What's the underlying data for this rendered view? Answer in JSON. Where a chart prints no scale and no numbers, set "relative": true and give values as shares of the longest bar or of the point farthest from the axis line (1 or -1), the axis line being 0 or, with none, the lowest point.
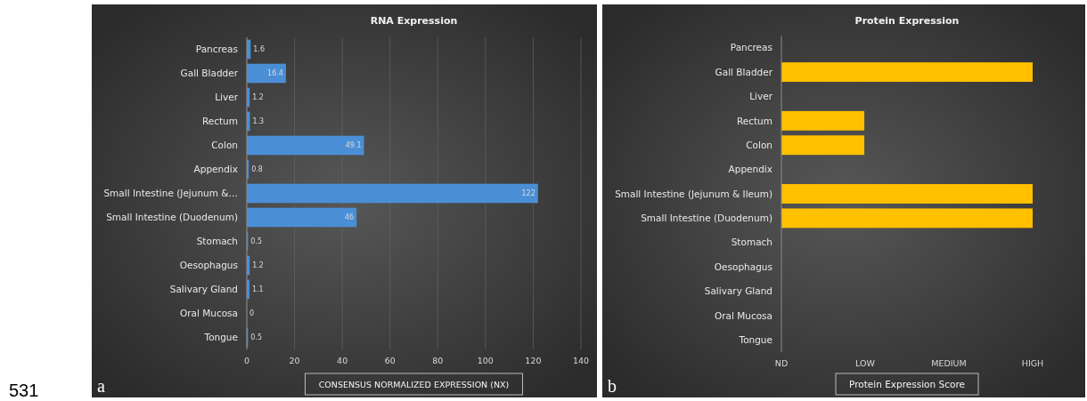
{
  "chart_data": [
    {
      "type": "bar",
      "orientation": "horizontal",
      "title": "RNA Expression",
      "xlabel": "CONSENSUS NORMALIZED EXPRESSION (NX)",
      "categories": [
        "Pancreas",
        "Gall Bladder",
        "Liver",
        "Rectum",
        "Colon",
        "Appendix",
        "Small Intestine (Jejunum &…",
        "Small Intestine (Duodenum)",
        "Stomach",
        "Oesophagus",
        "Salivary Gland",
        "Oral Mucosa",
        "Tongue"
      ],
      "values": [
        1.6,
        16.4,
        1.2,
        1.3,
        49.1,
        0.8,
        122,
        46,
        0.5,
        1.2,
        1.1,
        0,
        0.5
      ],
      "color": "#4a8fd6",
      "xlim": [
        0,
        140
      ],
      "xticks": [
        0,
        20,
        40,
        60,
        80,
        100,
        120,
        140
      ],
      "grid": "x",
      "data_labels": true,
      "annotations": [
        "a",
        "531"
      ]
    },
    {
      "type": "bar",
      "orientation": "horizontal",
      "title": "Protein Expression",
      "xlabel": "Protein Expression Score",
      "categories": [
        "Pancreas",
        "Gall Bladder",
        "Liver",
        "Rectum",
        "Colon",
        "Appendix",
        "Small Intestine (Jejunum & Ileum)",
        "Small Intestine (Duodenum)",
        "Stomach",
        "Oesophagus",
        "Salivary Gland",
        "Oral Mucosa",
        "Tongue"
      ],
      "values": [
        0,
        1,
        0,
        0.33,
        0.33,
        0,
        1,
        1,
        0,
        0,
        0,
        0,
        0
      ],
      "relative": true,
      "color": "#ffc000",
      "annotations": [
        "b",
        "ND",
        "LOW",
        "MEDIUM",
        "HIGH"
      ]
    }
  ]
}
